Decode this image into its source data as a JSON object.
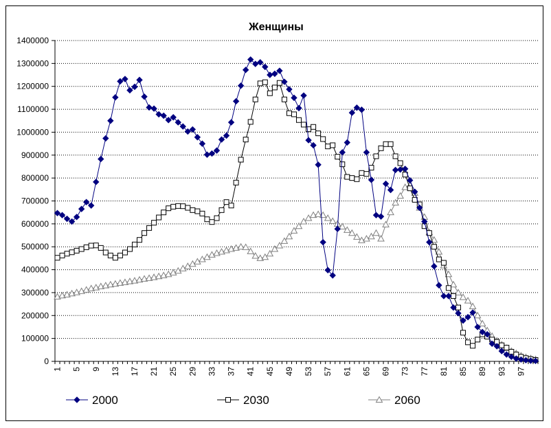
{
  "chart_data": {
    "type": "line",
    "title": "Женщины",
    "xlabel": "",
    "ylabel": "",
    "x": [
      1,
      2,
      3,
      4,
      5,
      6,
      7,
      8,
      9,
      10,
      11,
      12,
      13,
      14,
      15,
      16,
      17,
      18,
      19,
      20,
      21,
      22,
      23,
      24,
      25,
      26,
      27,
      28,
      29,
      30,
      31,
      32,
      33,
      34,
      35,
      36,
      37,
      38,
      39,
      40,
      41,
      42,
      43,
      44,
      45,
      46,
      47,
      48,
      49,
      50,
      51,
      52,
      53,
      54,
      55,
      56,
      57,
      58,
      59,
      60,
      61,
      62,
      63,
      64,
      65,
      66,
      67,
      68,
      69,
      70,
      71,
      72,
      73,
      74,
      75,
      76,
      77,
      78,
      79,
      80,
      81,
      82,
      83,
      84,
      85,
      86,
      87,
      88,
      89,
      90,
      91,
      92,
      93,
      94,
      95,
      96,
      97,
      98,
      99,
      100
    ],
    "x_tick_labels": [
      "1",
      "5",
      "9",
      "13",
      "17",
      "21",
      "25",
      "29",
      "33",
      "37",
      "41",
      "45",
      "49",
      "53",
      "57",
      "61",
      "65",
      "69",
      "73",
      "77",
      "81",
      "85",
      "89",
      "93",
      "97"
    ],
    "y_tick_labels": [
      "0",
      "100000",
      "200000",
      "300000",
      "400000",
      "500000",
      "600000",
      "700000",
      "800000",
      "900000",
      "1000000",
      "1100000",
      "1200000",
      "1300000",
      "1400000"
    ],
    "xlim": [
      1,
      100
    ],
    "ylim": [
      0,
      1400000
    ],
    "grid": "horizontal dotted",
    "legend_position": "bottom",
    "series": [
      {
        "name": "2000",
        "color": "#000080",
        "marker": "diamond-filled",
        "values": [
          647000,
          638000,
          622000,
          610000,
          630000,
          665000,
          695000,
          680000,
          783000,
          883000,
          973000,
          1050000,
          1152000,
          1222000,
          1232000,
          1183000,
          1198000,
          1228000,
          1155000,
          1108000,
          1103000,
          1078000,
          1072000,
          1053000,
          1065000,
          1043000,
          1025000,
          1003000,
          1012000,
          978000,
          950000,
          902000,
          907000,
          920000,
          968000,
          985000,
          1043000,
          1135000,
          1203000,
          1272000,
          1317000,
          1298000,
          1305000,
          1285000,
          1250000,
          1255000,
          1268000,
          1220000,
          1187000,
          1150000,
          1105000,
          1160000,
          965000,
          943000,
          858000,
          520000,
          398000,
          375000,
          578000,
          912000,
          955000,
          1085000,
          1107000,
          1098000,
          912000,
          792000,
          638000,
          632000,
          775000,
          748000,
          835000,
          837000,
          840000,
          790000,
          740000,
          670000,
          610000,
          520000,
          415000,
          332000,
          285000,
          285000,
          235000,
          210000,
          178000,
          193000,
          213000,
          150000,
          128000,
          118000,
          77000,
          66000,
          45000,
          30000,
          20000,
          12000,
          8000,
          5000,
          3000,
          2000
        ]
      },
      {
        "name": "2030",
        "color": "#000000",
        "marker": "square-open",
        "values": [
          452000,
          462000,
          470000,
          476000,
          483000,
          490000,
          498000,
          505000,
          506000,
          495000,
          475000,
          462000,
          452000,
          462000,
          475000,
          490000,
          510000,
          530000,
          560000,
          582000,
          605000,
          628000,
          650000,
          668000,
          675000,
          678000,
          677000,
          670000,
          660000,
          655000,
          645000,
          620000,
          608000,
          625000,
          660000,
          695000,
          680000,
          780000,
          880000,
          968000,
          1045000,
          1143000,
          1213000,
          1218000,
          1170000,
          1195000,
          1215000,
          1143000,
          1083000,
          1078000,
          1053000,
          1033000,
          1013000,
          1023000,
          995000,
          970000,
          938000,
          943000,
          893000,
          860000,
          805000,
          800000,
          795000,
          822000,
          818000,
          845000,
          895000,
          930000,
          948000,
          948000,
          895000,
          865000,
          815000,
          755000,
          705000,
          685000,
          590000,
          560000,
          500000,
          445000,
          430000,
          320000,
          285000,
          235000,
          125000,
          83000,
          68000,
          95000,
          118000,
          108000,
          95000,
          85000,
          70000,
          60000,
          42000,
          30000,
          20000,
          14000,
          10000,
          6000
        ]
      },
      {
        "name": "2060",
        "color": "#808080",
        "marker": "triangle-open",
        "values": [
          282000,
          287000,
          291000,
          296000,
          301000,
          306000,
          312000,
          318000,
          322000,
          327000,
          331000,
          335000,
          338000,
          342000,
          345000,
          349000,
          352000,
          356000,
          360000,
          363000,
          367000,
          371000,
          375000,
          380000,
          387000,
          395000,
          405000,
          415000,
          425000,
          435000,
          445000,
          455000,
          465000,
          472000,
          478000,
          484000,
          490000,
          495000,
          500000,
          498000,
          480000,
          460000,
          450000,
          455000,
          470000,
          490000,
          505000,
          525000,
          545000,
          570000,
          590000,
          610000,
          625000,
          638000,
          642000,
          638000,
          625000,
          612000,
          600000,
          588000,
          573000,
          560000,
          543000,
          528000,
          535000,
          545000,
          560000,
          535000,
          597000,
          650000,
          692000,
          722000,
          760000,
          768000,
          735000,
          670000,
          630000,
          563000,
          530000,
          478000,
          418000,
          380000,
          335000,
          300000,
          280000,
          265000,
          240000,
          200000,
          165000,
          135000,
          110000,
          90000,
          73000,
          58000,
          45000,
          35000,
          25000,
          18000,
          13000,
          9000
        ]
      }
    ]
  }
}
